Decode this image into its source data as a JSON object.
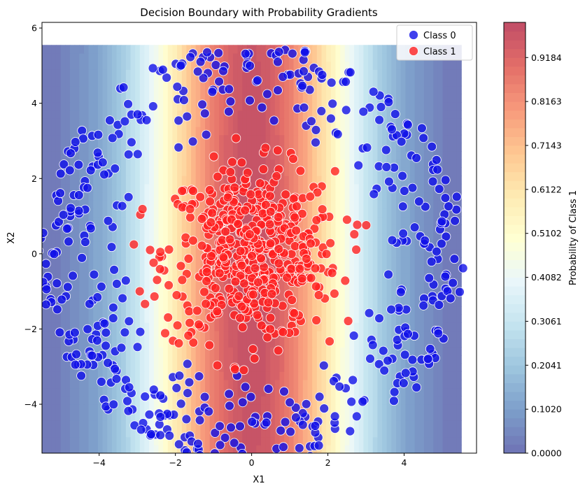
{
  "chart_data": {
    "type": "scatter",
    "title": "Decision Boundary with Probability Gradients",
    "xlabel": "X1",
    "ylabel": "X2",
    "xlim": [
      -5.5,
      5.9
    ],
    "ylim": [
      -5.3,
      6.15
    ],
    "xticks": [
      -4,
      -2,
      0,
      2,
      4
    ],
    "yticks": [
      -4,
      -2,
      0,
      2,
      4,
      6
    ],
    "grid": false,
    "legend": {
      "placement": "top-right"
    },
    "background_contour": {
      "description_of_function": "probability of class 1 over the plane",
      "x_range": [
        -5.5,
        5.5
      ],
      "y_range": [
        -5.3,
        5.55
      ],
      "colormap": "RdYlBu_r",
      "alpha": 0.7
    },
    "colorbar": {
      "label": "Probability of Class 1",
      "range": [
        0.0,
        1.0
      ],
      "ticks": [
        "0.0000",
        "0.1020",
        "0.2041",
        "0.3061",
        "0.4082",
        "0.5102",
        "0.6122",
        "0.7143",
        "0.8163",
        "0.9184"
      ],
      "tick_values": [
        0.0,
        0.102,
        0.2041,
        0.3061,
        0.4082,
        0.5102,
        0.6122,
        0.7143,
        0.8163,
        0.9184
      ]
    },
    "series": [
      {
        "name": "Class 0",
        "color": "#1010e8",
        "distribution": "ring",
        "count": 500,
        "radius_range": [
          3.2,
          5.6
        ],
        "center": [
          0,
          0
        ]
      },
      {
        "name": "Class 1",
        "color": "#ff2020",
        "distribution": "gaussian",
        "count": 500,
        "center": [
          0,
          0
        ],
        "std": 1.15
      }
    ]
  }
}
